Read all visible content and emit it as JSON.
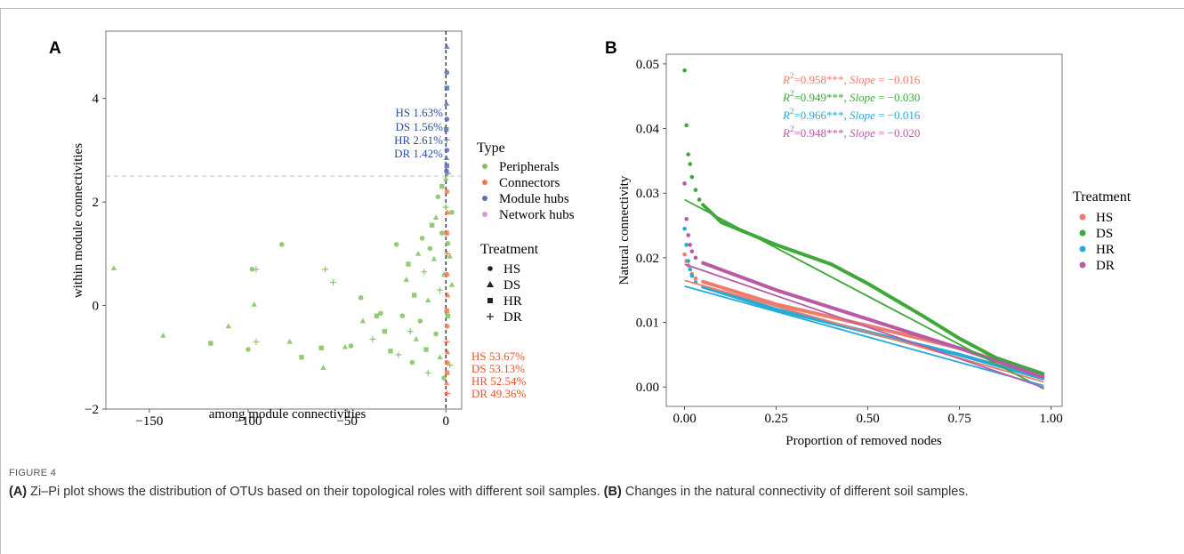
{
  "figure": {
    "label": "FIGURE 4",
    "caption_a_tag": "(A)",
    "caption_a_text": " Zi–Pi plot shows the distribution of OTUs based on their topological roles with different soil samples. ",
    "caption_b_tag": "(B)",
    "caption_b_text": " Changes in the natural connectivity of different soil samples."
  },
  "colors": {
    "peripherals": "#7fc35a",
    "connectors": "#f0784f",
    "module_hubs": "#5b6fb6",
    "network_hubs": "#d49bd6",
    "HS": "#f07b6b",
    "DS": "#3fa83a",
    "HR": "#27aad6",
    "DR": "#b85ba6",
    "blue_text": "#2f4e98",
    "red_text": "#e2562c"
  },
  "chart_data": [
    {
      "panel": "A",
      "type": "scatter",
      "xlabel": "among module connectivities",
      "ylabel": "within module connectivities",
      "xlim": [
        -172,
        8
      ],
      "ylim": [
        -2,
        5.3
      ],
      "xticks": [
        -150,
        -100,
        -50,
        0
      ],
      "xtick_labels": [
        "−150",
        "−100",
        "−50",
        "0"
      ],
      "yticks": [
        -2,
        0,
        2,
        4
      ],
      "ytick_labels": [
        "−2",
        "0",
        "2",
        "4"
      ],
      "hline": 2.5,
      "vline": 0,
      "legend_type_title": "Type",
      "legend_type": [
        "Peripherals",
        "Connectors",
        "Module hubs",
        "Network hubs"
      ],
      "legend_treatment_title": "Treatment",
      "legend_treatment": [
        "HS",
        "DS",
        "HR",
        "DR"
      ],
      "legend_treatment_symbols": [
        "●",
        "▲",
        "■",
        "+"
      ],
      "hub_annotations": [
        "HS  1.63%",
        "DS  1.56%",
        "HR  2.61%",
        "DR  1.42%"
      ],
      "connector_annotations": [
        "HS  53.67%",
        "DS  53.13%",
        "HR  52.54%",
        "DR  49.36%"
      ],
      "points": [
        {
          "x": -168,
          "y": 0.72,
          "s": "DS",
          "t": "p"
        },
        {
          "x": -143,
          "y": -0.58,
          "s": "DS",
          "t": "p"
        },
        {
          "x": -119,
          "y": -0.73,
          "s": "HR",
          "t": "p"
        },
        {
          "x": -110,
          "y": -0.4,
          "s": "DS",
          "t": "p"
        },
        {
          "x": -100,
          "y": -0.85,
          "s": "HS",
          "t": "p"
        },
        {
          "x": -98,
          "y": 0.7,
          "s": "HS",
          "t": "p"
        },
        {
          "x": -97,
          "y": 0.02,
          "s": "DS",
          "t": "p"
        },
        {
          "x": -96,
          "y": 0.7,
          "s": "DR",
          "t": "p"
        },
        {
          "x": -96,
          "y": -0.7,
          "s": "DR",
          "t": "p"
        },
        {
          "x": -83,
          "y": 1.18,
          "s": "HS",
          "t": "p"
        },
        {
          "x": -79,
          "y": -0.7,
          "s": "DS",
          "t": "p"
        },
        {
          "x": -73,
          "y": -1.0,
          "s": "HR",
          "t": "p"
        },
        {
          "x": -63,
          "y": -0.82,
          "s": "HR",
          "t": "p"
        },
        {
          "x": -62,
          "y": -1.2,
          "s": "DS",
          "t": "p"
        },
        {
          "x": -61,
          "y": 0.7,
          "s": "DR",
          "t": "p"
        },
        {
          "x": -57,
          "y": 0.45,
          "s": "DR",
          "t": "p"
        },
        {
          "x": -51,
          "y": -0.8,
          "s": "DS",
          "t": "p"
        },
        {
          "x": -48,
          "y": -0.78,
          "s": "HS",
          "t": "p"
        },
        {
          "x": -43,
          "y": 0.15,
          "s": "HS",
          "t": "p"
        },
        {
          "x": -42,
          "y": -0.3,
          "s": "DS",
          "t": "p"
        },
        {
          "x": -37,
          "y": -0.65,
          "s": "DR",
          "t": "p"
        },
        {
          "x": -35,
          "y": -0.2,
          "s": "HR",
          "t": "p"
        },
        {
          "x": -33,
          "y": -0.15,
          "s": "HS",
          "t": "p"
        },
        {
          "x": -31,
          "y": -0.5,
          "s": "HR",
          "t": "p"
        },
        {
          "x": -28,
          "y": -0.88,
          "s": "HR",
          "t": "p"
        },
        {
          "x": -25,
          "y": 1.18,
          "s": "HS",
          "t": "p"
        },
        {
          "x": -24,
          "y": -0.95,
          "s": "DR",
          "t": "p"
        },
        {
          "x": -22,
          "y": -0.2,
          "s": "HS",
          "t": "p"
        },
        {
          "x": -20,
          "y": 0.5,
          "s": "DS",
          "t": "p"
        },
        {
          "x": -19,
          "y": 0.8,
          "s": "HR",
          "t": "p"
        },
        {
          "x": -18,
          "y": -0.5,
          "s": "DR",
          "t": "p"
        },
        {
          "x": -17,
          "y": -1.1,
          "s": "HS",
          "t": "p"
        },
        {
          "x": -16,
          "y": 0.2,
          "s": "HR",
          "t": "p"
        },
        {
          "x": -15,
          "y": -0.65,
          "s": "DS",
          "t": "p"
        },
        {
          "x": -14,
          "y": 1.0,
          "s": "DS",
          "t": "p"
        },
        {
          "x": -13,
          "y": -0.3,
          "s": "HS",
          "t": "p"
        },
        {
          "x": -12,
          "y": 1.3,
          "s": "HS",
          "t": "p"
        },
        {
          "x": -11,
          "y": 0.65,
          "s": "DR",
          "t": "p"
        },
        {
          "x": -10,
          "y": -0.85,
          "s": "HR",
          "t": "p"
        },
        {
          "x": -9,
          "y": 0.1,
          "s": "DS",
          "t": "p"
        },
        {
          "x": -9,
          "y": -1.3,
          "s": "DR",
          "t": "p"
        },
        {
          "x": -8,
          "y": 1.1,
          "s": "HS",
          "t": "p"
        },
        {
          "x": -7,
          "y": 1.55,
          "s": "HR",
          "t": "p"
        },
        {
          "x": -6,
          "y": 0.9,
          "s": "DS",
          "t": "p"
        },
        {
          "x": -5,
          "y": -0.55,
          "s": "HS",
          "t": "p"
        },
        {
          "x": -5,
          "y": 1.7,
          "s": "DS",
          "t": "p"
        },
        {
          "x": -4,
          "y": 2.1,
          "s": "HS",
          "t": "p"
        },
        {
          "x": -3,
          "y": 0.3,
          "s": "DR",
          "t": "p"
        },
        {
          "x": -3,
          "y": -1.0,
          "s": "DS",
          "t": "p"
        },
        {
          "x": -2,
          "y": 2.3,
          "s": "HR",
          "t": "p"
        },
        {
          "x": -2,
          "y": 1.4,
          "s": "HS",
          "t": "p"
        },
        {
          "x": -1,
          "y": 0.6,
          "s": "DS",
          "t": "p"
        },
        {
          "x": -1,
          "y": -1.4,
          "s": "HS",
          "t": "p"
        },
        {
          "x": 0,
          "y": 2.45,
          "s": "DS",
          "t": "p"
        },
        {
          "x": 0,
          "y": 1.9,
          "s": "DR",
          "t": "p"
        },
        {
          "x": 1,
          "y": 1.2,
          "s": "HS",
          "t": "p"
        },
        {
          "x": 1,
          "y": -0.2,
          "s": "HR",
          "t": "p"
        },
        {
          "x": 2,
          "y": 0.95,
          "s": "DS",
          "t": "p"
        },
        {
          "x": 2,
          "y": -1.15,
          "s": "DR",
          "t": "p"
        },
        {
          "x": 3,
          "y": 1.8,
          "s": "HS",
          "t": "p"
        },
        {
          "x": 3,
          "y": 0.4,
          "s": "DS",
          "t": "p"
        },
        {
          "x": 0.5,
          "y": 5.0,
          "s": "DS",
          "t": "h"
        },
        {
          "x": 0.5,
          "y": 4.5,
          "s": "HS",
          "t": "h"
        },
        {
          "x": 0.5,
          "y": 4.2,
          "s": "HR",
          "t": "h"
        },
        {
          "x": 0.3,
          "y": 3.9,
          "s": "DS",
          "t": "h"
        },
        {
          "x": 0.5,
          "y": 3.6,
          "s": "HS",
          "t": "h"
        },
        {
          "x": 0.2,
          "y": 3.4,
          "s": "HR",
          "t": "h"
        },
        {
          "x": 0.4,
          "y": 3.2,
          "s": "DR",
          "t": "h"
        },
        {
          "x": 0.5,
          "y": 3.0,
          "s": "HS",
          "t": "h"
        },
        {
          "x": 0.3,
          "y": 2.85,
          "s": "DS",
          "t": "h"
        },
        {
          "x": 0.5,
          "y": 2.7,
          "s": "HR",
          "t": "h"
        },
        {
          "x": 0.3,
          "y": 2.6,
          "s": "HS",
          "t": "h"
        },
        {
          "x": 1.0,
          "y": 2.55,
          "s": "DR",
          "t": "h"
        },
        {
          "x": 0.5,
          "y": 2.2,
          "s": "HS",
          "t": "c"
        },
        {
          "x": 0.8,
          "y": 1.8,
          "s": "DS",
          "t": "c"
        },
        {
          "x": 0.4,
          "y": 1.4,
          "s": "HR",
          "t": "c"
        },
        {
          "x": 0.7,
          "y": 1.0,
          "s": "DR",
          "t": "c"
        },
        {
          "x": 0.5,
          "y": 0.6,
          "s": "HS",
          "t": "c"
        },
        {
          "x": 0.9,
          "y": 0.2,
          "s": "DS",
          "t": "c"
        },
        {
          "x": 0.5,
          "y": -0.1,
          "s": "HR",
          "t": "c"
        },
        {
          "x": 0.6,
          "y": -0.4,
          "s": "HS",
          "t": "c"
        },
        {
          "x": 0.4,
          "y": -0.7,
          "s": "DR",
          "t": "c"
        },
        {
          "x": 0.8,
          "y": -0.9,
          "s": "DS",
          "t": "c"
        },
        {
          "x": 0.5,
          "y": -1.1,
          "s": "HS",
          "t": "c"
        },
        {
          "x": 0.6,
          "y": -1.3,
          "s": "HR",
          "t": "c"
        },
        {
          "x": 0.4,
          "y": -1.5,
          "s": "DS",
          "t": "c"
        },
        {
          "x": 0.7,
          "y": -1.7,
          "s": "DR",
          "t": "c"
        }
      ]
    },
    {
      "panel": "B",
      "type": "scatter",
      "xlabel": "Proportion of removed nodes",
      "ylabel": "Natural connectivity",
      "xlim": [
        -0.05,
        1.03
      ],
      "ylim": [
        -0.003,
        0.0515
      ],
      "xticks": [
        0,
        0.25,
        0.5,
        0.75,
        1.0
      ],
      "xtick_labels": [
        "0.00",
        "0.25",
        "0.50",
        "0.75",
        "1.00"
      ],
      "yticks": [
        0,
        0.01,
        0.02,
        0.03,
        0.04,
        0.05
      ],
      "ytick_labels": [
        "0.00",
        "0.01",
        "0.02",
        "0.03",
        "0.04",
        "0.05"
      ],
      "legend_title": "Treatment",
      "legend": [
        "HS",
        "DS",
        "HR",
        "DR"
      ],
      "annotations": [
        {
          "series": "HS",
          "r2": "0.958***",
          "slope": "−0.016"
        },
        {
          "series": "DS",
          "r2": "0.949***",
          "slope": "−0.030"
        },
        {
          "series": "HR",
          "r2": "0.966***",
          "slope": "−0.016"
        },
        {
          "series": "DR",
          "r2": "0.948***",
          "slope": "−0.020"
        }
      ],
      "series": [
        {
          "name": "HS",
          "head": [
            [
              0.0,
              0.0205
            ],
            [
              0.005,
              0.0195
            ],
            [
              0.01,
              0.0188
            ],
            [
              0.02,
              0.0175
            ],
            [
              0.03,
              0.0168
            ]
          ],
          "curve": [
            [
              0.05,
              0.0163
            ],
            [
              0.25,
              0.0128
            ],
            [
              0.5,
              0.0095
            ],
            [
              0.75,
              0.006
            ],
            [
              0.98,
              0.0018
            ]
          ],
          "fit": [
            [
              0,
              0.0165
            ],
            [
              0.98,
              0.0008
            ]
          ]
        },
        {
          "name": "DS",
          "head": [
            [
              0.0,
              0.049
            ],
            [
              0.005,
              0.0405
            ],
            [
              0.01,
              0.036
            ],
            [
              0.015,
              0.0345
            ],
            [
              0.02,
              0.0325
            ],
            [
              0.03,
              0.0305
            ],
            [
              0.04,
              0.029
            ]
          ],
          "curve": [
            [
              0.05,
              0.0282
            ],
            [
              0.1,
              0.0255
            ],
            [
              0.25,
              0.022
            ],
            [
              0.4,
              0.019
            ],
            [
              0.5,
              0.016
            ],
            [
              0.65,
              0.011
            ],
            [
              0.75,
              0.0075
            ],
            [
              0.85,
              0.0045
            ],
            [
              0.98,
              0.002
            ]
          ],
          "fit": [
            [
              0,
              0.029
            ],
            [
              0.98,
              -0.0003
            ]
          ]
        },
        {
          "name": "HR",
          "head": [
            [
              0.0,
              0.0245
            ],
            [
              0.005,
              0.022
            ],
            [
              0.01,
              0.0195
            ],
            [
              0.015,
              0.0182
            ],
            [
              0.02,
              0.0172
            ],
            [
              0.03,
              0.0162
            ]
          ],
          "curve": [
            [
              0.05,
              0.0155
            ],
            [
              0.25,
              0.012
            ],
            [
              0.5,
              0.0085
            ],
            [
              0.75,
              0.005
            ],
            [
              0.98,
              0.0013
            ]
          ],
          "fit": [
            [
              0,
              0.0156
            ],
            [
              0.98,
              0.0002
            ]
          ]
        },
        {
          "name": "DR",
          "head": [
            [
              0.0,
              0.0315
            ],
            [
              0.005,
              0.026
            ],
            [
              0.01,
              0.0235
            ],
            [
              0.015,
              0.022
            ],
            [
              0.02,
              0.021
            ],
            [
              0.03,
              0.02
            ]
          ],
          "curve": [
            [
              0.05,
              0.0192
            ],
            [
              0.25,
              0.015
            ],
            [
              0.5,
              0.0105
            ],
            [
              0.75,
              0.006
            ],
            [
              0.98,
              0.0015
            ]
          ],
          "fit": [
            [
              0,
              0.019
            ],
            [
              0.98,
              -0.0001
            ]
          ]
        }
      ]
    }
  ]
}
